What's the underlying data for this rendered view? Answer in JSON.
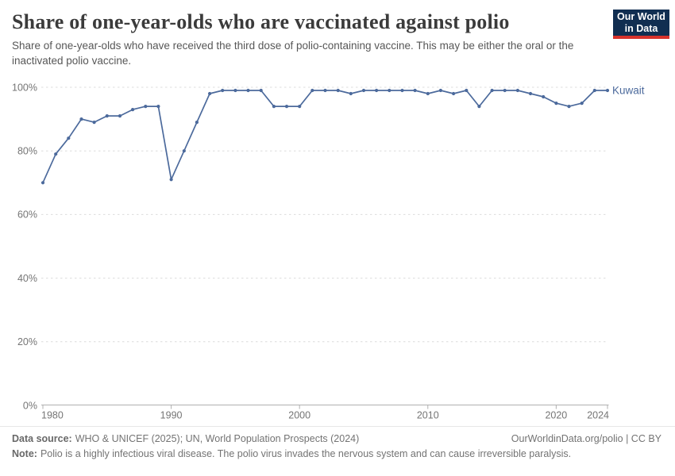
{
  "header": {
    "title": "Share of one-year-olds who are vaccinated against polio",
    "subtitle": "Share of one-year-olds who have received the third dose of polio-containing vaccine. This may be either the oral or the inactivated polio vaccine.",
    "logo": {
      "line1": "Our World",
      "line2": "in Data",
      "bg_color": "#112E51",
      "accent_color": "#D8322B"
    }
  },
  "chart_data": {
    "type": "line",
    "title": "Share of one-year-olds who are vaccinated against polio",
    "xlabel": "",
    "ylabel": "",
    "xlim": [
      1980,
      2024
    ],
    "ylim": [
      0,
      100
    ],
    "x_ticks": [
      1980,
      1990,
      2000,
      2010,
      2020,
      2024
    ],
    "y_ticks": [
      0,
      20,
      40,
      60,
      80,
      100
    ],
    "y_tick_suffix": "%",
    "grid": "horizontal-dashed",
    "legend_position": "end-of-line",
    "series": [
      {
        "name": "Kuwait",
        "color": "#4C6A9C",
        "years": [
          1980,
          1981,
          1982,
          1983,
          1984,
          1985,
          1986,
          1987,
          1988,
          1989,
          1990,
          1991,
          1992,
          1993,
          1994,
          1995,
          1996,
          1997,
          1998,
          1999,
          2000,
          2001,
          2002,
          2003,
          2004,
          2005,
          2006,
          2007,
          2008,
          2009,
          2010,
          2011,
          2012,
          2013,
          2014,
          2015,
          2016,
          2017,
          2018,
          2019,
          2020,
          2021,
          2022,
          2023,
          2024
        ],
        "values": [
          70,
          79,
          84,
          90,
          89,
          91,
          91,
          93,
          94,
          94,
          71,
          80,
          89,
          98,
          99,
          99,
          99,
          99,
          94,
          94,
          94,
          99,
          99,
          99,
          98,
          99,
          99,
          99,
          99,
          99,
          98,
          99,
          98,
          99,
          94,
          99,
          99,
          99,
          98,
          97,
          95,
          94,
          95,
          99,
          99
        ]
      }
    ]
  },
  "footer": {
    "source_label": "Data source:",
    "source_text": "WHO & UNICEF (2025); UN, World Population Prospects (2024)",
    "url_text": "OurWorldinData.org/polio | CC BY",
    "note_label": "Note:",
    "note_text": "Polio is a highly infectious viral disease. The polio virus invades the nervous system and can cause irreversible paralysis."
  }
}
